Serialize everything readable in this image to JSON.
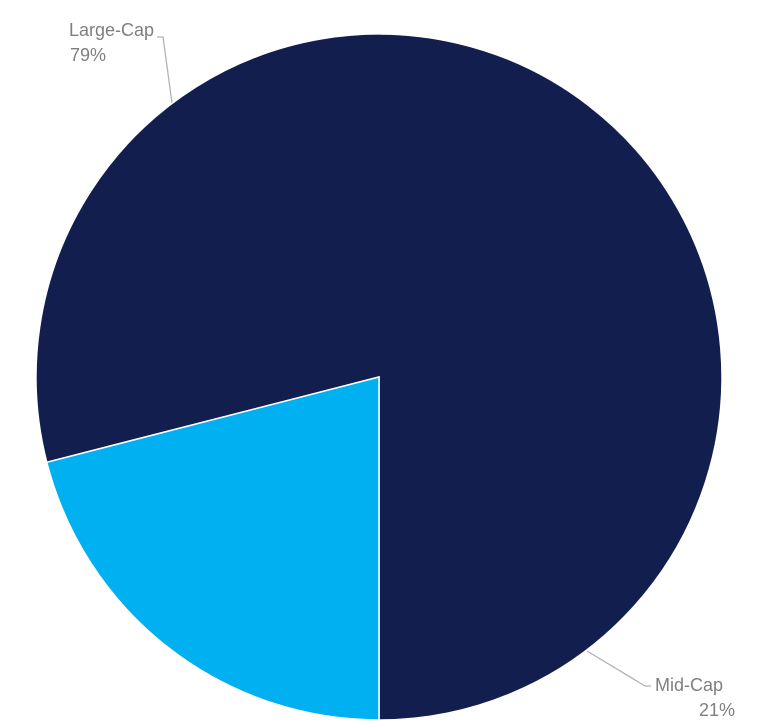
{
  "chart_data": {
    "type": "pie",
    "title": "",
    "start_angle_deg": 0,
    "direction": "counterclockwise",
    "legend": "none",
    "slices": [
      {
        "name": "Large-Cap",
        "value": 79,
        "label": "Large-Cap",
        "value_label": "79%",
        "color": "#121e4e"
      },
      {
        "name": "Mid-Cap",
        "value": 21,
        "label": "Mid-Cap",
        "value_label": "21%",
        "color": "#00b0f0"
      }
    ]
  }
}
